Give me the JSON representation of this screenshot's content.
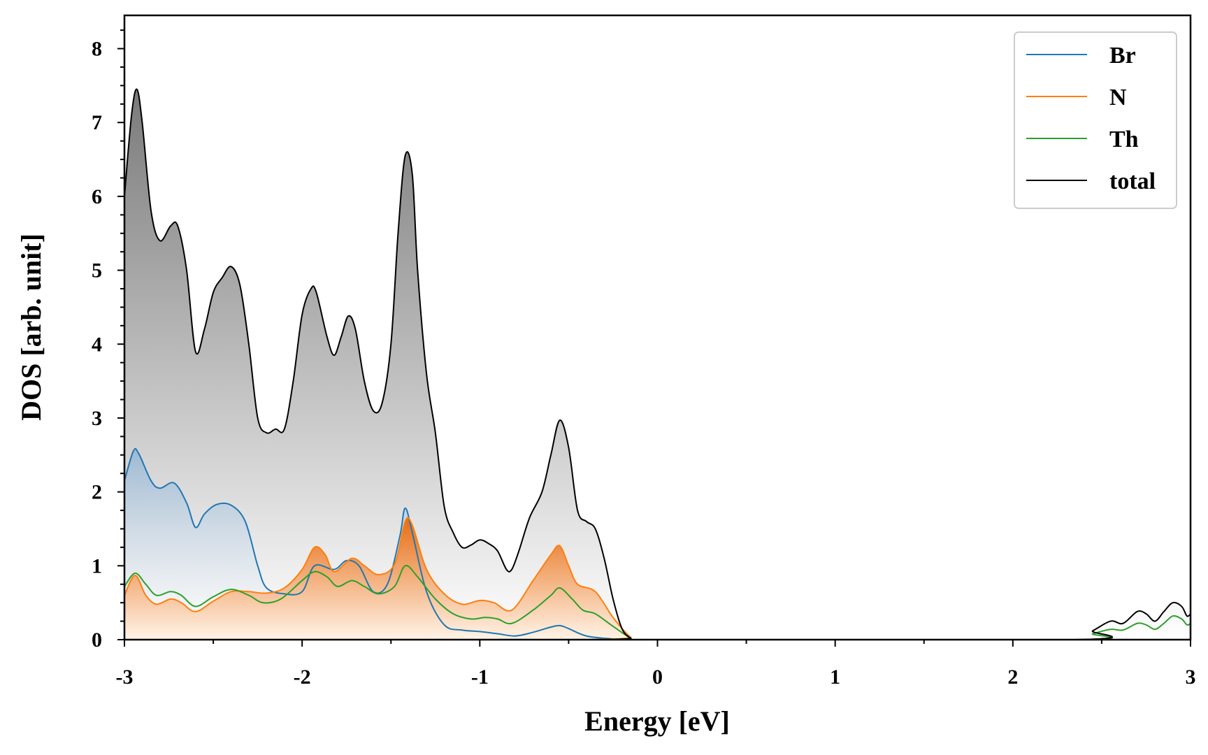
{
  "chart_data": {
    "type": "line",
    "xlabel": "Energy [eV]",
    "ylabel": "DOS [arb. unit]",
    "xlim": [
      -3,
      3
    ],
    "ylim": [
      0,
      8.45
    ],
    "xticks": [
      -3,
      -2,
      -1,
      0,
      1,
      2,
      3
    ],
    "yticks": [
      0,
      1,
      2,
      3,
      4,
      5,
      6,
      7,
      8
    ],
    "legend_position": "top-right",
    "grid": false,
    "series": [
      {
        "name": "Br",
        "color": "#1f77b4",
        "filled": true,
        "points": [
          [
            -3.0,
            2.15
          ],
          [
            -2.95,
            2.55
          ],
          [
            -2.92,
            2.52
          ],
          [
            -2.85,
            2.15
          ],
          [
            -2.8,
            2.05
          ],
          [
            -2.72,
            2.12
          ],
          [
            -2.65,
            1.85
          ],
          [
            -2.6,
            1.52
          ],
          [
            -2.55,
            1.7
          ],
          [
            -2.48,
            1.83
          ],
          [
            -2.4,
            1.82
          ],
          [
            -2.32,
            1.6
          ],
          [
            -2.25,
            1.0
          ],
          [
            -2.2,
            0.7
          ],
          [
            -2.1,
            0.62
          ],
          [
            -2.0,
            0.65
          ],
          [
            -1.93,
            1.0
          ],
          [
            -1.82,
            0.95
          ],
          [
            -1.75,
            1.07
          ],
          [
            -1.68,
            1.0
          ],
          [
            -1.6,
            0.65
          ],
          [
            -1.52,
            0.75
          ],
          [
            -1.45,
            1.4
          ],
          [
            -1.42,
            1.78
          ],
          [
            -1.38,
            1.45
          ],
          [
            -1.3,
            0.65
          ],
          [
            -1.2,
            0.2
          ],
          [
            -1.1,
            0.13
          ],
          [
            -1.0,
            0.11
          ],
          [
            -0.9,
            0.08
          ],
          [
            -0.8,
            0.05
          ],
          [
            -0.7,
            0.1
          ],
          [
            -0.6,
            0.17
          ],
          [
            -0.55,
            0.19
          ],
          [
            -0.5,
            0.15
          ],
          [
            -0.4,
            0.05
          ],
          [
            -0.25,
            0.01
          ],
          [
            -0.1,
            0.0
          ],
          [
            3.0,
            0.0
          ]
        ]
      },
      {
        "name": "N",
        "color": "#ff7f0e",
        "filled": true,
        "points": [
          [
            -3.0,
            0.6
          ],
          [
            -2.94,
            0.87
          ],
          [
            -2.88,
            0.6
          ],
          [
            -2.82,
            0.48
          ],
          [
            -2.74,
            0.55
          ],
          [
            -2.68,
            0.5
          ],
          [
            -2.6,
            0.38
          ],
          [
            -2.5,
            0.52
          ],
          [
            -2.4,
            0.65
          ],
          [
            -2.3,
            0.65
          ],
          [
            -2.2,
            0.63
          ],
          [
            -2.1,
            0.7
          ],
          [
            -2.0,
            0.95
          ],
          [
            -1.93,
            1.25
          ],
          [
            -1.87,
            1.15
          ],
          [
            -1.82,
            0.92
          ],
          [
            -1.72,
            1.1
          ],
          [
            -1.65,
            1.0
          ],
          [
            -1.57,
            0.88
          ],
          [
            -1.48,
            1.02
          ],
          [
            -1.42,
            1.6
          ],
          [
            -1.38,
            1.55
          ],
          [
            -1.3,
            0.95
          ],
          [
            -1.2,
            0.62
          ],
          [
            -1.1,
            0.48
          ],
          [
            -1.0,
            0.53
          ],
          [
            -0.92,
            0.5
          ],
          [
            -0.82,
            0.4
          ],
          [
            -0.7,
            0.8
          ],
          [
            -0.6,
            1.15
          ],
          [
            -0.55,
            1.27
          ],
          [
            -0.5,
            1.0
          ],
          [
            -0.45,
            0.75
          ],
          [
            -0.35,
            0.65
          ],
          [
            -0.25,
            0.3
          ],
          [
            -0.15,
            0.03
          ],
          [
            -0.1,
            0.0
          ],
          [
            3.0,
            0.0
          ]
        ]
      },
      {
        "name": "Th",
        "color": "#2ca02c",
        "filled": false,
        "points": [
          [
            -3.0,
            0.72
          ],
          [
            -2.94,
            0.9
          ],
          [
            -2.88,
            0.75
          ],
          [
            -2.82,
            0.6
          ],
          [
            -2.74,
            0.65
          ],
          [
            -2.68,
            0.6
          ],
          [
            -2.6,
            0.45
          ],
          [
            -2.5,
            0.58
          ],
          [
            -2.4,
            0.68
          ],
          [
            -2.3,
            0.6
          ],
          [
            -2.22,
            0.5
          ],
          [
            -2.12,
            0.55
          ],
          [
            -2.0,
            0.8
          ],
          [
            -1.93,
            0.92
          ],
          [
            -1.86,
            0.85
          ],
          [
            -1.8,
            0.72
          ],
          [
            -1.72,
            0.8
          ],
          [
            -1.65,
            0.72
          ],
          [
            -1.57,
            0.62
          ],
          [
            -1.48,
            0.72
          ],
          [
            -1.42,
            1.0
          ],
          [
            -1.35,
            0.85
          ],
          [
            -1.25,
            0.55
          ],
          [
            -1.15,
            0.35
          ],
          [
            -1.05,
            0.28
          ],
          [
            -0.97,
            0.3
          ],
          [
            -0.9,
            0.28
          ],
          [
            -0.82,
            0.22
          ],
          [
            -0.7,
            0.4
          ],
          [
            -0.6,
            0.6
          ],
          [
            -0.55,
            0.7
          ],
          [
            -0.48,
            0.55
          ],
          [
            -0.42,
            0.4
          ],
          [
            -0.35,
            0.35
          ],
          [
            -0.25,
            0.18
          ],
          [
            -0.15,
            0.02
          ],
          [
            -0.1,
            0.0
          ],
          [
            2.35,
            0.0
          ],
          [
            2.45,
            0.08
          ],
          [
            2.55,
            0.14
          ],
          [
            2.62,
            0.13
          ],
          [
            2.7,
            0.22
          ],
          [
            2.75,
            0.2
          ],
          [
            2.8,
            0.14
          ],
          [
            2.85,
            0.22
          ],
          [
            2.9,
            0.32
          ],
          [
            2.95,
            0.28
          ],
          [
            2.98,
            0.2
          ],
          [
            3.0,
            0.22
          ]
        ]
      },
      {
        "name": "total",
        "color": "#000000",
        "filled": true,
        "points": [
          [
            -3.0,
            6.0
          ],
          [
            -2.96,
            7.1
          ],
          [
            -2.93,
            7.45
          ],
          [
            -2.9,
            7.0
          ],
          [
            -2.85,
            5.8
          ],
          [
            -2.8,
            5.4
          ],
          [
            -2.74,
            5.6
          ],
          [
            -2.7,
            5.6
          ],
          [
            -2.65,
            5.0
          ],
          [
            -2.6,
            3.9
          ],
          [
            -2.55,
            4.2
          ],
          [
            -2.5,
            4.7
          ],
          [
            -2.45,
            4.9
          ],
          [
            -2.4,
            5.05
          ],
          [
            -2.35,
            4.8
          ],
          [
            -2.3,
            4.0
          ],
          [
            -2.25,
            3.0
          ],
          [
            -2.2,
            2.8
          ],
          [
            -2.15,
            2.85
          ],
          [
            -2.1,
            2.85
          ],
          [
            -2.05,
            3.5
          ],
          [
            -2.0,
            4.4
          ],
          [
            -1.95,
            4.75
          ],
          [
            -1.92,
            4.7
          ],
          [
            -1.86,
            4.1
          ],
          [
            -1.82,
            3.85
          ],
          [
            -1.78,
            4.1
          ],
          [
            -1.74,
            4.38
          ],
          [
            -1.7,
            4.2
          ],
          [
            -1.65,
            3.5
          ],
          [
            -1.6,
            3.1
          ],
          [
            -1.55,
            3.2
          ],
          [
            -1.5,
            4.0
          ],
          [
            -1.46,
            5.5
          ],
          [
            -1.42,
            6.55
          ],
          [
            -1.38,
            6.3
          ],
          [
            -1.35,
            5.0
          ],
          [
            -1.3,
            3.6
          ],
          [
            -1.25,
            2.8
          ],
          [
            -1.2,
            1.8
          ],
          [
            -1.15,
            1.45
          ],
          [
            -1.1,
            1.25
          ],
          [
            -1.05,
            1.28
          ],
          [
            -1.0,
            1.35
          ],
          [
            -0.95,
            1.3
          ],
          [
            -0.9,
            1.2
          ],
          [
            -0.85,
            0.95
          ],
          [
            -0.82,
            0.95
          ],
          [
            -0.78,
            1.2
          ],
          [
            -0.72,
            1.65
          ],
          [
            -0.65,
            2.0
          ],
          [
            -0.6,
            2.5
          ],
          [
            -0.55,
            2.97
          ],
          [
            -0.5,
            2.6
          ],
          [
            -0.45,
            1.75
          ],
          [
            -0.4,
            1.6
          ],
          [
            -0.35,
            1.5
          ],
          [
            -0.3,
            1.1
          ],
          [
            -0.25,
            0.55
          ],
          [
            -0.2,
            0.15
          ],
          [
            -0.15,
            0.02
          ],
          [
            -0.1,
            0.0
          ],
          [
            2.35,
            0.0
          ],
          [
            2.45,
            0.12
          ],
          [
            2.55,
            0.25
          ],
          [
            2.62,
            0.22
          ],
          [
            2.7,
            0.38
          ],
          [
            2.75,
            0.35
          ],
          [
            2.8,
            0.25
          ],
          [
            2.85,
            0.38
          ],
          [
            2.9,
            0.5
          ],
          [
            2.95,
            0.45
          ],
          [
            2.98,
            0.32
          ],
          [
            3.0,
            0.35
          ]
        ]
      }
    ]
  }
}
